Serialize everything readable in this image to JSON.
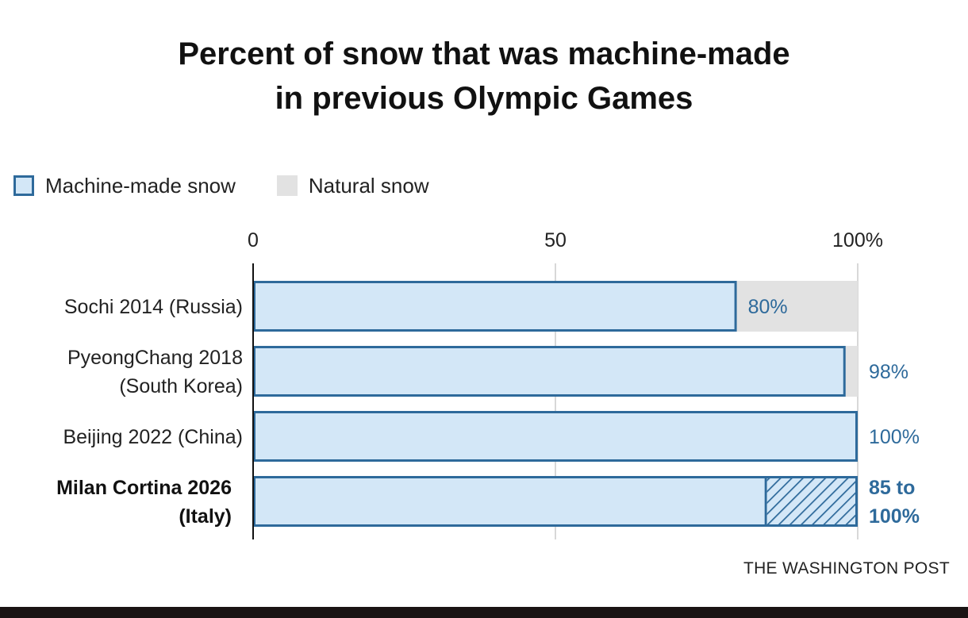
{
  "title_lines": [
    "Percent of snow that was machine-made",
    "in previous Olympic Games"
  ],
  "legend": [
    {
      "label": "Machine-made snow",
      "swatch": "machine"
    },
    {
      "label": "Natural snow",
      "swatch": "natural"
    }
  ],
  "source": "THE WASHINGTON POST",
  "colors": {
    "machine_fill": "#d3e7f7",
    "machine_stroke": "#2e6a9b",
    "natural_fill": "#e2e2e2",
    "value_text": "#2e6a9b",
    "label_text": "#222222",
    "gridline": "#cccccc",
    "axis": "#111111"
  },
  "chart_data": {
    "type": "bar",
    "orientation": "horizontal",
    "stacked": true,
    "x_ticks": [
      {
        "value": 0,
        "label": "0"
      },
      {
        "value": 50,
        "label": "50"
      },
      {
        "value": 100,
        "label": "100%"
      }
    ],
    "xlim": [
      0,
      100
    ],
    "grid": true,
    "legend_position": "top-left",
    "categories": [
      {
        "label_lines": [
          "Sochi 2014 (Russia)"
        ],
        "machine": 80,
        "natural": 20,
        "value_lines": [
          "80%"
        ],
        "bold": false
      },
      {
        "label_lines": [
          "PyeongChang 2018",
          "(South Korea)"
        ],
        "machine": 98,
        "natural": 2,
        "value_lines": [
          "98%"
        ],
        "bold": false
      },
      {
        "label_lines": [
          "Beijing 2022 (China)"
        ],
        "machine": 100,
        "natural": 0,
        "value_lines": [
          "100%"
        ],
        "bold": false
      },
      {
        "label_lines": [
          "Milan Cortina 2026",
          "(Italy)"
        ],
        "machine": 85,
        "machine_range_max": 100,
        "natural": 0,
        "value_lines": [
          "85 to",
          "100%"
        ],
        "bold": true
      }
    ]
  }
}
